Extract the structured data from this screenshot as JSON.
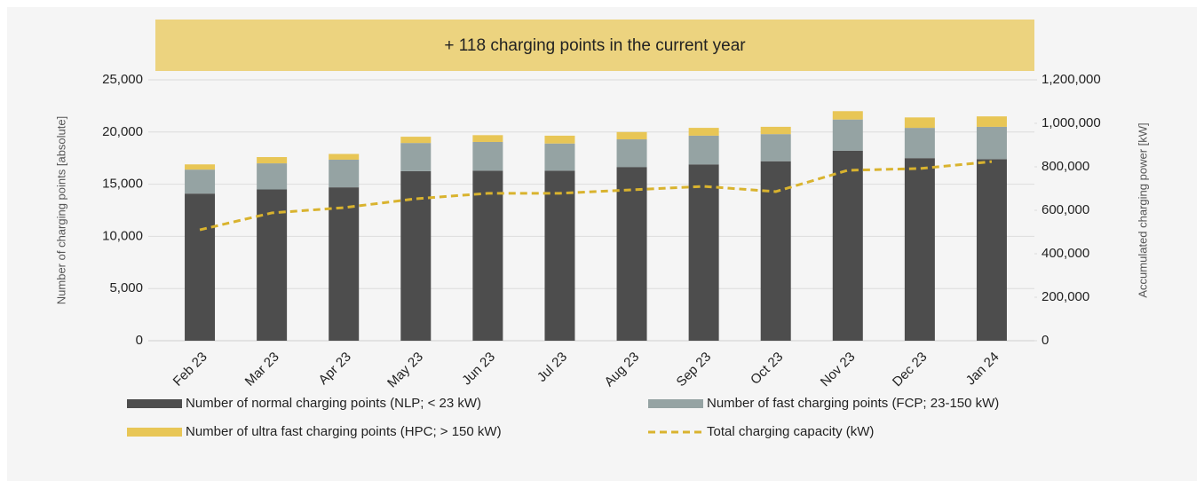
{
  "chart_data": {
    "type": "bar",
    "title": "+ 118 charging points in the current year",
    "categories": [
      "Feb 23",
      "Mar 23",
      "Apr 23",
      "May 23",
      "Jun 23",
      "Jul 23",
      "Aug 23",
      "Sep 23",
      "Oct 23",
      "Nov 23",
      "Dec 23",
      "Jan 24"
    ],
    "series": [
      {
        "name": "Number of normal charging points (NLP; < 23 kW)",
        "type": "bar",
        "color": "#4d4d4d",
        "values": [
          14100,
          14500,
          14700,
          16250,
          16300,
          16300,
          16650,
          16900,
          17200,
          18200,
          17500,
          17400
        ]
      },
      {
        "name": "Number of fast charging points (FCP; 23-150 kW)",
        "type": "bar",
        "color": "#95a3a3",
        "values": [
          2300,
          2500,
          2650,
          2700,
          2750,
          2600,
          2650,
          2750,
          2600,
          3000,
          2900,
          3100
        ]
      },
      {
        "name": "Number of ultra fast charging points (HPC; > 150 kW)",
        "type": "bar",
        "color": "#e8c656",
        "values": [
          500,
          600,
          550,
          600,
          650,
          750,
          700,
          750,
          700,
          800,
          1000,
          1000
        ]
      },
      {
        "name": "Total charging capacity (kW)",
        "type": "line",
        "axis": "y2",
        "color": "#d9b32e",
        "values": [
          510000,
          588000,
          612000,
          653000,
          678000,
          678000,
          694000,
          710000,
          686000,
          784000,
          792000,
          824000
        ]
      }
    ],
    "ylabel": "Number of charging points [absolute]",
    "y2label": "Accumulated charging power [kW]",
    "ylim": [
      0,
      25000
    ],
    "yticks": [
      0,
      {
        "value": 5000,
        "label": "5,000"
      },
      {
        "value": 10000,
        "label": "10,000"
      },
      {
        "value": 15000,
        "label": "15,000"
      },
      {
        "value": 20000,
        "label": "20,000"
      },
      {
        "value": 25000,
        "label": "25,000"
      }
    ],
    "y2lim": [
      0,
      1200000
    ],
    "y2ticks": [
      0,
      {
        "value": 200000,
        "label": "200,000"
      },
      {
        "value": 400000,
        "label": "400,000"
      },
      {
        "value": 600000,
        "label": "600,000"
      },
      {
        "value": 800000,
        "label": "800,000"
      },
      {
        "value": 1000000,
        "label": "1,000,000"
      },
      {
        "value": 1200000,
        "label": "1,200,000"
      }
    ],
    "grid": true
  }
}
